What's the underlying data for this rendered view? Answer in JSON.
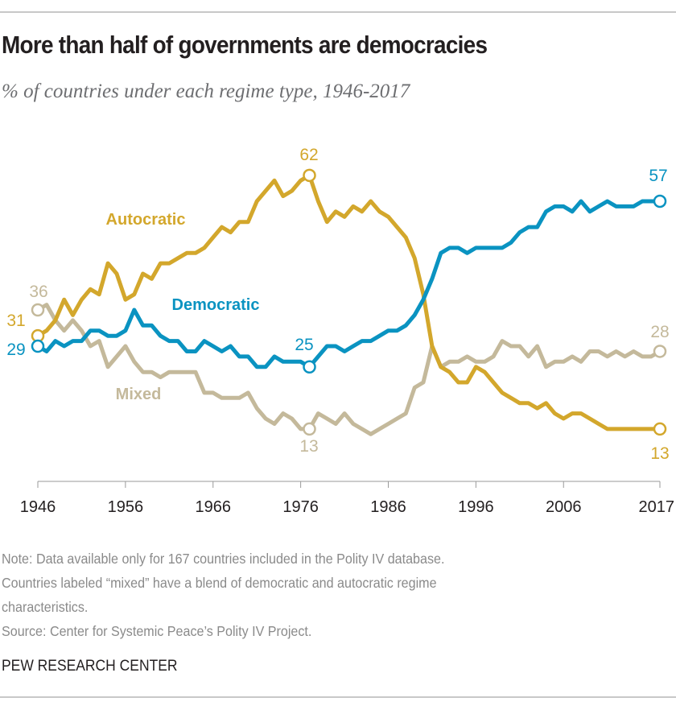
{
  "title": "More than half of governments are democracies",
  "subtitle": "% of countries under each regime type, 1946-2017",
  "notes": [
    "Note: Data available only for 167 countries included in the Polity IV database.",
    "Countries labeled “mixed” have a blend of democratic and autocratic regime",
    "characteristics.",
    "Source: Center for Systemic Peace’s Polity IV Project."
  ],
  "brand": "PEW RESEARCH CENTER",
  "chart_data": {
    "type": "line",
    "title": "More than half of governments are democracies",
    "xlabel": "",
    "ylabel": "",
    "x_start": 1946,
    "x_end": 2017,
    "xlim": [
      1946,
      2017
    ],
    "ylim": [
      0,
      70
    ],
    "grid": false,
    "legend": "inline labels",
    "x_tick_labels": [
      "1946",
      "1956",
      "1966",
      "1976",
      "1986",
      "1996",
      "2006",
      "2017"
    ],
    "series": [
      {
        "name": "Autocratic",
        "color": "#d3a72c",
        "values": [
          31,
          32,
          34,
          38,
          35,
          38,
          40,
          39,
          45,
          43,
          38,
          39,
          43,
          42,
          45,
          45,
          46,
          47,
          47,
          48,
          50,
          52,
          51,
          53,
          53,
          57,
          59,
          61,
          58,
          59,
          61,
          62,
          57,
          53,
          55,
          54,
          56,
          55,
          57,
          55,
          54,
          52,
          50,
          46,
          39,
          29,
          25,
          24,
          22,
          22,
          25,
          24,
          22,
          20,
          19,
          18,
          18,
          17,
          18,
          16,
          15,
          16,
          16,
          15,
          14,
          13,
          13,
          13,
          13,
          13,
          13,
          13
        ],
        "annotations": [
          {
            "year": 1946,
            "label": "31"
          },
          {
            "year": 1977,
            "label": "62"
          },
          {
            "year": 2017,
            "label": "13"
          }
        ]
      },
      {
        "name": "Democratic",
        "color": "#0a93c1",
        "values": [
          29,
          28,
          30,
          29,
          30,
          30,
          32,
          32,
          31,
          31,
          32,
          36,
          33,
          33,
          31,
          30,
          30,
          28,
          28,
          30,
          29,
          28,
          29,
          27,
          27,
          25,
          25,
          27,
          26,
          26,
          26,
          25,
          27,
          29,
          29,
          28,
          29,
          30,
          30,
          31,
          32,
          32,
          33,
          35,
          38,
          42,
          47,
          48,
          48,
          47,
          48,
          48,
          48,
          48,
          49,
          51,
          52,
          52,
          55,
          56,
          56,
          55,
          57,
          55,
          56,
          57,
          56,
          56,
          56,
          57,
          57,
          57
        ],
        "annotations": [
          {
            "year": 1946,
            "label": "29"
          },
          {
            "year": 1977,
            "label": "25"
          },
          {
            "year": 2017,
            "label": "57"
          }
        ]
      },
      {
        "name": "Mixed",
        "color": "#c4b99b",
        "values": [
          36,
          37,
          34,
          32,
          34,
          32,
          29,
          30,
          25,
          27,
          29,
          26,
          24,
          24,
          23,
          24,
          24,
          24,
          24,
          20,
          20,
          19,
          19,
          19,
          20,
          17,
          15,
          14,
          16,
          15,
          13,
          13,
          16,
          15,
          14,
          16,
          14,
          13,
          12,
          13,
          14,
          15,
          16,
          21,
          22,
          29,
          25,
          26,
          26,
          27,
          26,
          26,
          27,
          30,
          29,
          29,
          27,
          29,
          25,
          26,
          26,
          27,
          26,
          28,
          28,
          27,
          28,
          27,
          28,
          27,
          27,
          28
        ],
        "annotations": [
          {
            "year": 1946,
            "label": "36"
          },
          {
            "year": 1977,
            "label": "13"
          },
          {
            "year": 2017,
            "label": "28"
          }
        ]
      }
    ]
  }
}
